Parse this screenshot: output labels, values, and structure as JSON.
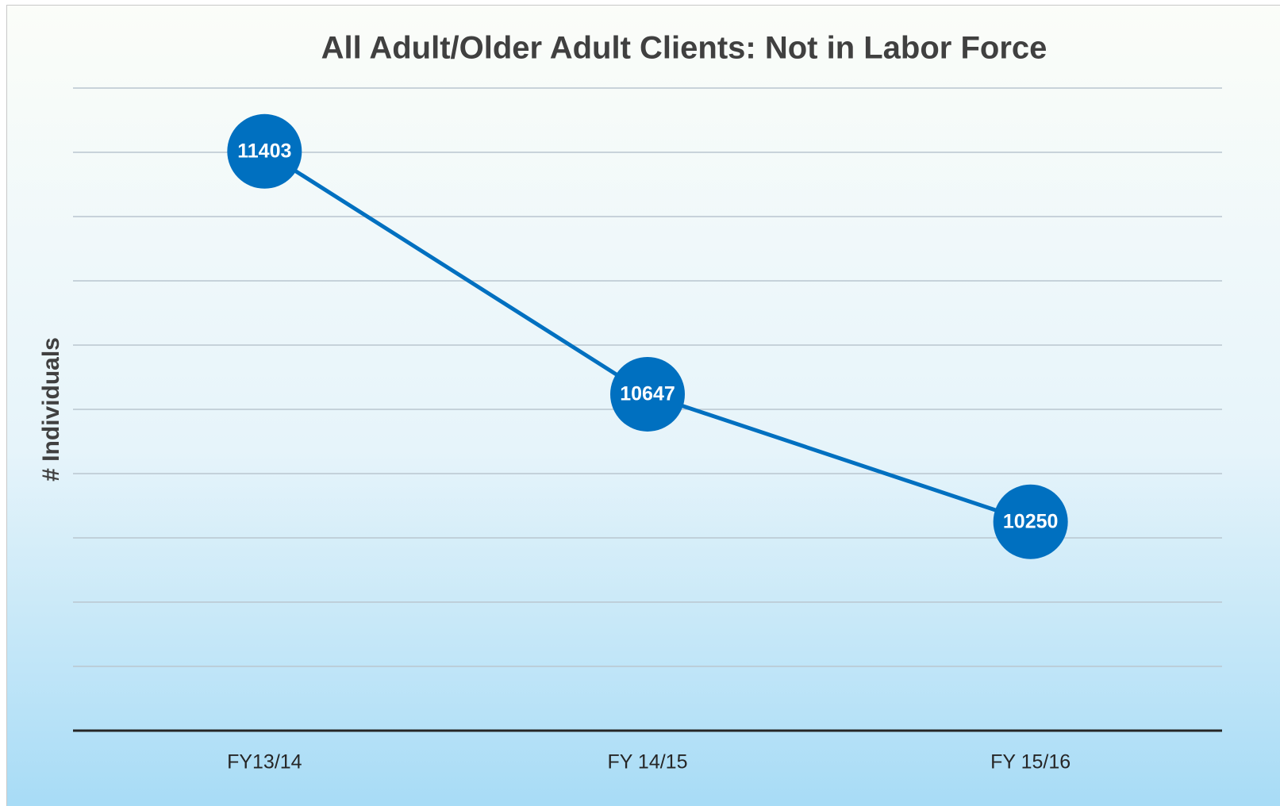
{
  "chart_data": {
    "type": "line",
    "title": "All Adult/Older Adult Clients: Not in Labor Force",
    "y_label": "# Individuals",
    "categories": [
      "FY13/14",
      "FY 14/15",
      "FY 15/16"
    ],
    "series": [
      {
        "name": "Not in Labor Force",
        "color": "#0070c0",
        "values": [
          11403,
          10647,
          10250
        ]
      }
    ],
    "ylim": [
      9600,
      11600
    ],
    "yticks": [
      9600,
      9800,
      10000,
      10200,
      10400,
      10600,
      10800,
      11000,
      11200,
      11400,
      11600
    ],
    "grid": true
  }
}
